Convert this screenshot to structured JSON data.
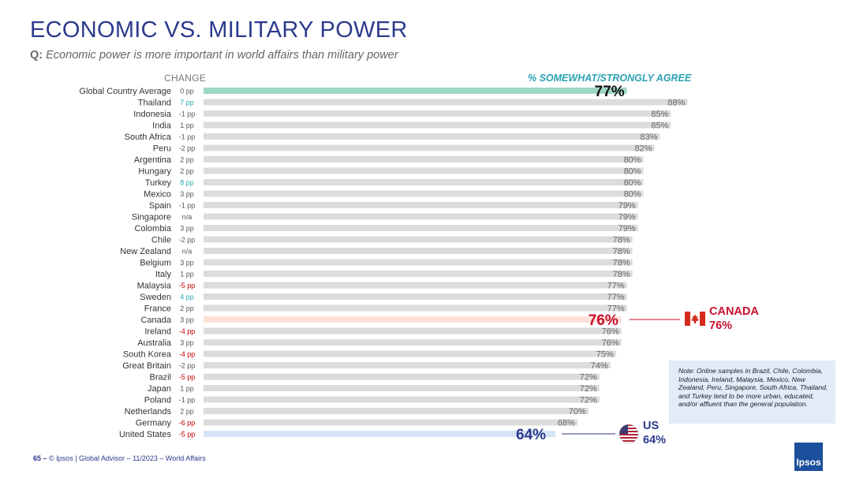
{
  "title": "ECONOMIC VS. MILITARY POWER",
  "question": {
    "label": "Q:",
    "text": "Economic power is more important in world affairs than military power"
  },
  "colors": {
    "title": "#2d3a8c",
    "accent": "#2aa2b3",
    "bar": "#dcdcdc",
    "global_bar": "#9fd8c2",
    "canada_bar": "#fde1d9",
    "us_bar": "#d5e4f5",
    "negative": "#c00000",
    "positive": "#2aa2b3"
  },
  "chart_data": {
    "type": "bar",
    "orientation": "horizontal",
    "title": "ECONOMIC VS. MILITARY POWER",
    "column_headers": {
      "change": "CHANGE",
      "value": "% SOMEWHAT/STRONGLY AGREE"
    },
    "categories": [
      "Global Country Average",
      "Thailand",
      "Indonesia",
      "India",
      "South Africa",
      "Peru",
      "Argentina",
      "Hungary",
      "Turkey",
      "Mexico",
      "Spain",
      "Singapore",
      "Colombia",
      "Chile",
      "New Zealand",
      "Belgium",
      "Italy",
      "Malaysia",
      "Sweden",
      "France",
      "Canada",
      "Ireland",
      "Australia",
      "South Korea",
      "Great Britain",
      "Brazil",
      "Japan",
      "Poland",
      "Netherlands",
      "Germany",
      "United States"
    ],
    "values": [
      77,
      88,
      85,
      85,
      83,
      82,
      80,
      80,
      80,
      80,
      79,
      79,
      79,
      78,
      78,
      78,
      78,
      77,
      77,
      77,
      76,
      76,
      76,
      75,
      74,
      72,
      72,
      72,
      70,
      68,
      64
    ],
    "change": [
      "0 pp",
      "7 pp",
      "-1 pp",
      "1 pp",
      "-1 pp",
      "-2 pp",
      "2 pp",
      "2 pp",
      "8 pp",
      "3 pp",
      "-1 pp",
      "n/a",
      "3 pp",
      "-2 pp",
      "n/a",
      "3 pp",
      "1 pp",
      "-5 pp",
      "4 pp",
      "2 pp",
      "3 pp",
      "-4 pp",
      "3 pp",
      "-4 pp",
      "-2 pp",
      "-5 pp",
      "1 pp",
      "-1 pp",
      "2 pp",
      "-6 pp",
      "-5 pp"
    ],
    "value_labels": [
      "77%",
      "88%",
      "85%",
      "85%",
      "83%",
      "82%",
      "80%",
      "80%",
      "80%",
      "80%",
      "79%",
      "79%",
      "79%",
      "78%",
      "78%",
      "78%",
      "78%",
      "77%",
      "77%",
      "77%",
      "76%",
      "76%",
      "76%",
      "75%",
      "74%",
      "72%",
      "72%",
      "72%",
      "70%",
      "68%",
      "64%"
    ],
    "highlight": {
      "Global Country Average": "global",
      "Canada": "canada",
      "United States": "us"
    },
    "xlim": [
      0,
      100
    ],
    "unit": "%"
  },
  "callouts": {
    "canada": {
      "name": "CANADA",
      "value": "76%",
      "flag": "canada-flag-icon"
    },
    "us": {
      "name": "US",
      "value": "64%",
      "flag": "us-flag-icon"
    }
  },
  "note": "Note: Online samples in Brazil, Chile, Colombia, Indonesia, Ireland, Malaysia, Mexico, New Zealand, Peru, Singapore, South Africa, Thailand, and Turkey tend to be more urban, educated, and/or affluent than the general population.",
  "footer": {
    "page": "65 –",
    "text": "© Ipsos | Global Advisor – 11/2023 – World Affairs"
  },
  "logo": "Ipsos"
}
